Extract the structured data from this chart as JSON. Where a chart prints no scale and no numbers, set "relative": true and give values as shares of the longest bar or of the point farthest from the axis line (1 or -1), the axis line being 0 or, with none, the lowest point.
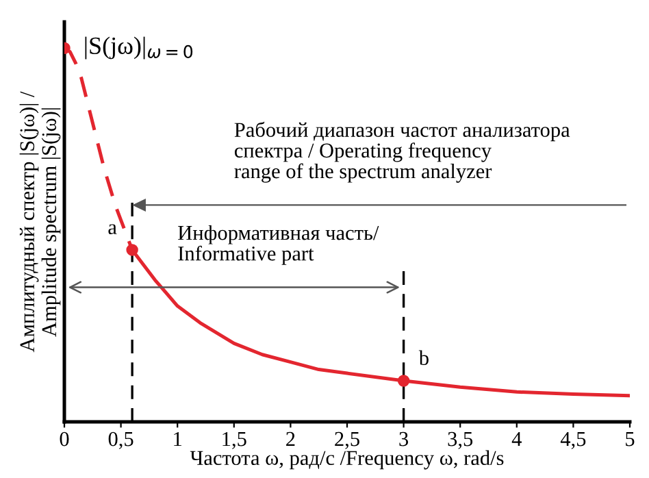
{
  "chart_data": {
    "type": "line",
    "relative": true,
    "xlabel": "Частота ω, рад/с /Frequency ω, rad/s",
    "ylabel": "Амплитудный спектр |S(jω)| /\nAmplitude spectrum |S(jω)|",
    "xlim": [
      0,
      5
    ],
    "xticks": [
      0,
      {
        "value": 0.5,
        "label": "0,5"
      },
      1,
      {
        "value": 1.5,
        "label": "1,5"
      },
      2,
      {
        "value": 2.5,
        "label": "2,5"
      },
      3,
      {
        "value": 3.5,
        "label": "3,5"
      },
      4,
      {
        "value": 4.5,
        "label": "4,5"
      },
      5
    ],
    "grid": false,
    "series": [
      {
        "line_style": "dashed",
        "color": "#e3262f",
        "x": [
          0,
          0.05,
          0.1,
          0.15,
          0.2,
          0.25,
          0.3,
          0.35,
          0.4,
          0.45,
          0.5,
          0.55,
          0.6
        ],
        "values": [
          1.0,
          0.99,
          0.96,
          0.92,
          0.86,
          0.8,
          0.74,
          0.68,
          0.63,
          0.58,
          0.54,
          0.5,
          0.46
        ]
      },
      {
        "line_style": "solid",
        "color": "#e3262f",
        "x": [
          0.6,
          0.7,
          0.8,
          0.9,
          1.0,
          1.2,
          1.5,
          1.75,
          2,
          2.25,
          2.5,
          3,
          3.5,
          4,
          4.5,
          5
        ],
        "values": [
          0.46,
          0.42,
          0.38,
          0.345,
          0.31,
          0.265,
          0.21,
          0.18,
          0.16,
          0.14,
          0.13,
          0.11,
          0.093,
          0.08,
          0.074,
          0.07
        ]
      },
      {
        "type": "scatter",
        "marker": "circle",
        "color": "#e3262f",
        "x": [
          0,
          0.6,
          3
        ],
        "values": [
          1.0,
          0.46,
          0.11
        ]
      }
    ],
    "ref_lines": [
      {
        "axis": "x",
        "value": 0.6,
        "line_style": "dashed",
        "color": "#000000"
      },
      {
        "axis": "x",
        "value": 3,
        "line_style": "dashed",
        "color": "#000000"
      }
    ],
    "annotations": [
      {
        "text": "|S(jω)|$_{ω=0}$",
        "x": 0,
        "y": 1.0
      },
      {
        "text": "a",
        "x": 0.6,
        "y": 0.46
      },
      {
        "text": "b",
        "x": 3,
        "y": 0.11
      },
      "Рабочий диапазон частот анализатора\nспектра / Operating frequency\nrange of the spectrum analyzer",
      "Информативная часть/\nInformative part"
    ]
  }
}
